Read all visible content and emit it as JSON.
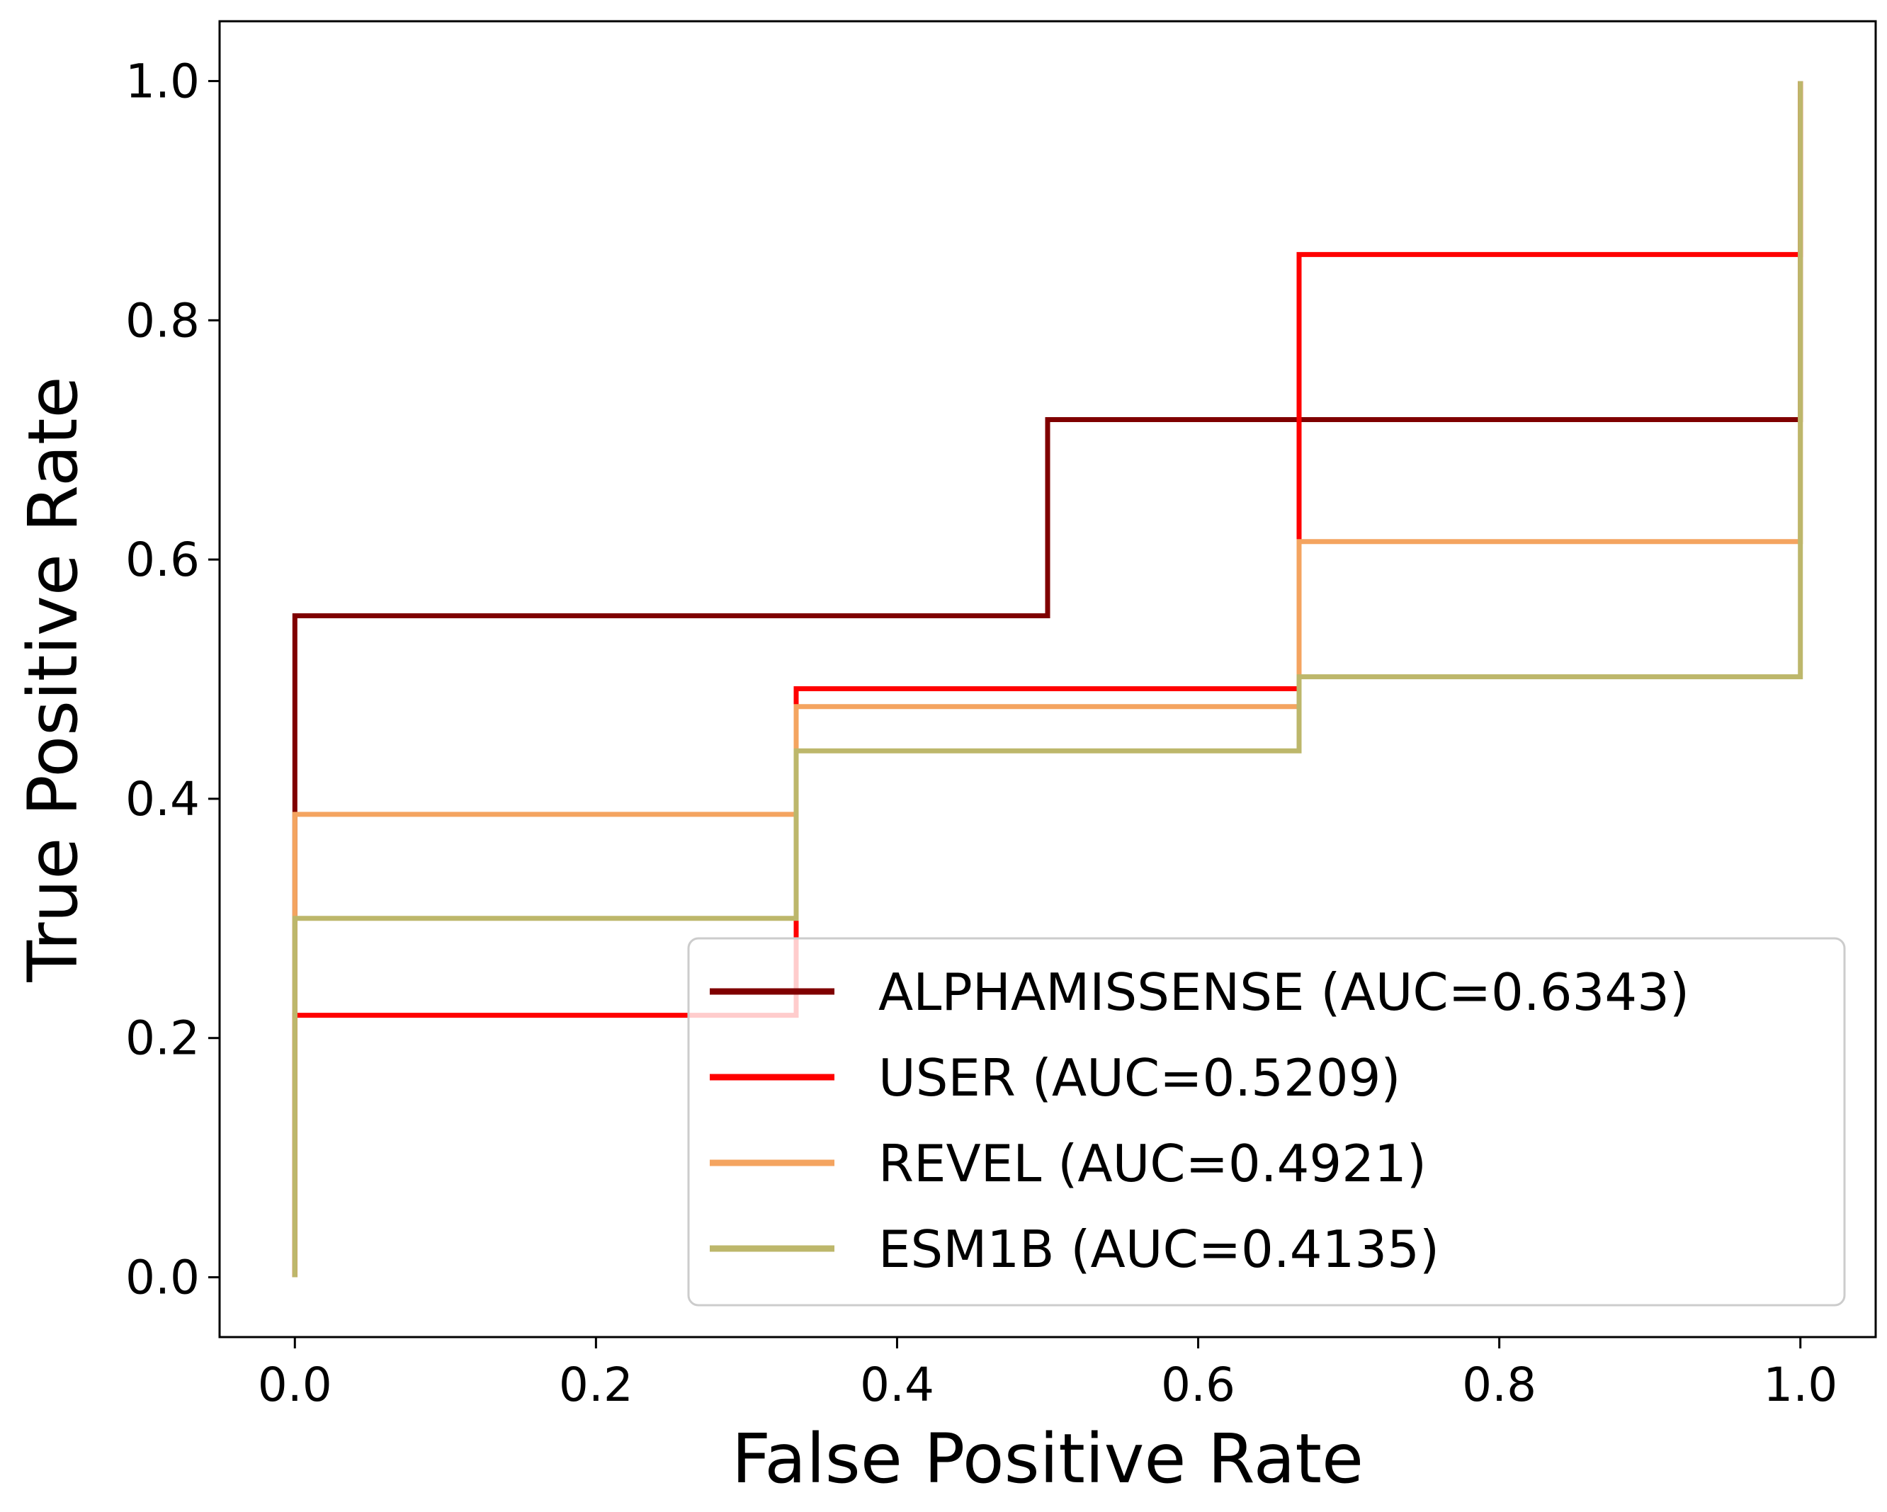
{
  "chart_data": {
    "type": "line",
    "title": "",
    "xlabel": "False Positive Rate",
    "ylabel": "True Positive Rate",
    "xlim": [
      -0.05,
      1.05
    ],
    "ylim": [
      -0.05,
      1.05
    ],
    "x_ticks": [
      0.0,
      0.2,
      0.4,
      0.6,
      0.8,
      1.0
    ],
    "y_ticks": [
      0.0,
      0.2,
      0.4,
      0.6,
      0.8,
      1.0
    ],
    "x_tick_labels": [
      "0.0",
      "0.2",
      "0.4",
      "0.6",
      "0.8",
      "1.0"
    ],
    "y_tick_labels": [
      "0.0",
      "0.2",
      "0.4",
      "0.6",
      "0.8",
      "1.0"
    ],
    "grid": false,
    "legend_position": "lower-right",
    "series": [
      {
        "name": "ALPHAMISSENSE (AUC=0.6343)",
        "color": "#7f0000",
        "points": [
          [
            0,
            0
          ],
          [
            0,
            0.553
          ],
          [
            0.5,
            0.553
          ],
          [
            0.5,
            0.717
          ],
          [
            1.0,
            0.717
          ],
          [
            1.0,
            1.0
          ]
        ]
      },
      {
        "name": "USER (AUC=0.5209)",
        "color": "#ff0000",
        "points": [
          [
            0,
            0
          ],
          [
            0,
            0.219
          ],
          [
            0.333,
            0.219
          ],
          [
            0.333,
            0.492
          ],
          [
            0.667,
            0.492
          ],
          [
            0.667,
            0.855
          ],
          [
            1.0,
            0.855
          ],
          [
            1.0,
            1.0
          ]
        ]
      },
      {
        "name": "REVEL (AUC=0.4921)",
        "color": "#f4a460",
        "points": [
          [
            0,
            0
          ],
          [
            0,
            0.387
          ],
          [
            0.333,
            0.387
          ],
          [
            0.333,
            0.477
          ],
          [
            0.667,
            0.477
          ],
          [
            0.667,
            0.615
          ],
          [
            1.0,
            0.615
          ],
          [
            1.0,
            1.0
          ]
        ]
      },
      {
        "name": "ESM1B (AUC=0.4135)",
        "color": "#bdb76b",
        "points": [
          [
            0,
            0
          ],
          [
            0,
            0.3
          ],
          [
            0.333,
            0.3
          ],
          [
            0.333,
            0.44
          ],
          [
            0.667,
            0.44
          ],
          [
            0.667,
            0.502
          ],
          [
            1.0,
            0.502
          ],
          [
            1.0,
            1.0
          ]
        ]
      }
    ]
  }
}
